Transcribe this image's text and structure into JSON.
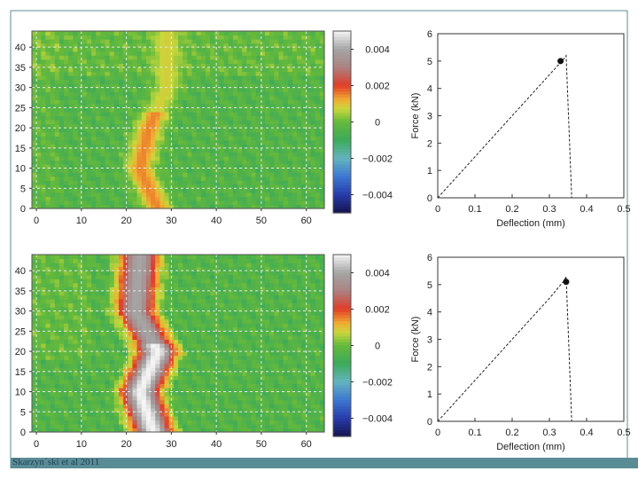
{
  "footer": {
    "citation": "Skarzyn´ski et al 2011"
  },
  "colorbar": {
    "tick_labels": [
      "0.004",
      "0.002",
      "0",
      "−0.002",
      "−0.004"
    ],
    "ticks": [
      0.004,
      0.002,
      0,
      -0.002,
      -0.004
    ],
    "range": [
      -0.005,
      0.005
    ]
  },
  "chart_data": [
    {
      "type": "heatmap",
      "panel": "top-left",
      "x_ticks": [
        0,
        10,
        20,
        30,
        40,
        50,
        60
      ],
      "y_ticks": [
        0,
        5,
        10,
        15,
        20,
        25,
        30,
        35,
        40
      ],
      "xlim": [
        -1,
        64
      ],
      "ylim": [
        0,
        44
      ],
      "grid": true,
      "band_centerline": [
        [
          0,
          27
        ],
        [
          10,
          23
        ],
        [
          20,
          25
        ],
        [
          30,
          29
        ]
      ],
      "band_peak_value": 0.0015
    },
    {
      "type": "line",
      "panel": "top-right",
      "xlabel": "Deflection (mm)",
      "ylabel": "Force (kN)",
      "x_ticks": [
        0,
        0.1,
        0.2,
        0.3,
        0.4,
        0.5
      ],
      "y_ticks": [
        0,
        1,
        2,
        3,
        4,
        5,
        6
      ],
      "xlim": [
        0,
        0.5
      ],
      "ylim": [
        0,
        6
      ],
      "grid": false,
      "series": [
        {
          "x": [
            0,
            0.1,
            0.2,
            0.3,
            0.34,
            0.345,
            0.36
          ],
          "y": [
            0,
            1.5,
            3.0,
            4.5,
            5.1,
            5.2,
            0
          ]
        }
      ],
      "marker_point": [
        0.33,
        5.0
      ]
    },
    {
      "type": "heatmap",
      "panel": "bottom-left",
      "x_ticks": [
        0,
        10,
        20,
        30,
        40,
        50,
        60
      ],
      "y_ticks": [
        0,
        5,
        10,
        15,
        20,
        25,
        30,
        35,
        40
      ],
      "xlim": [
        -1,
        64
      ],
      "ylim": [
        0,
        44
      ],
      "grid": true,
      "band_centerline": [
        [
          0,
          26
        ],
        [
          10,
          23
        ],
        [
          20,
          27
        ],
        [
          30,
          22
        ],
        [
          44,
          23
        ]
      ],
      "band_peak_value": 0.005
    },
    {
      "type": "line",
      "panel": "bottom-right",
      "xlabel": "Deflection (mm)",
      "ylabel": "Force (kN)",
      "x_ticks": [
        0,
        0.1,
        0.2,
        0.3,
        0.4,
        0.5
      ],
      "y_ticks": [
        0,
        1,
        2,
        3,
        4,
        5,
        6
      ],
      "xlim": [
        0,
        0.5
      ],
      "ylim": [
        0,
        6
      ],
      "grid": false,
      "series": [
        {
          "x": [
            0,
            0.1,
            0.2,
            0.3,
            0.34,
            0.345,
            0.36
          ],
          "y": [
            0,
            1.5,
            3.0,
            4.5,
            5.15,
            5.3,
            0
          ]
        }
      ],
      "marker_point": [
        0.345,
        5.1
      ]
    }
  ]
}
